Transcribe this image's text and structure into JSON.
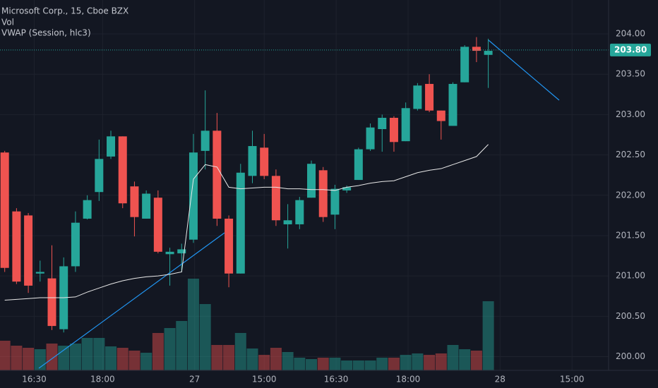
{
  "chart_data": {
    "type": "candlestick",
    "title": "Microsoft Corp., 15, Cboe BZX",
    "indicator_labels": [
      "Vol",
      "VWAP (Session, hlc3)"
    ],
    "categories": [
      null,
      null,
      null,
      null,
      null,
      null,
      null,
      null,
      null,
      null,
      null,
      null,
      null,
      null,
      null,
      null,
      null,
      null,
      null,
      null,
      null,
      null,
      null,
      null,
      null,
      null,
      null,
      null,
      null,
      null,
      null,
      null,
      null,
      null,
      null,
      null,
      null,
      null,
      null,
      null,
      null,
      null
    ],
    "open": [
      202.53,
      201.8,
      201.75,
      201.03,
      200.97,
      200.34,
      201.12,
      201.71,
      202.04,
      202.48,
      202.73,
      202.11,
      201.71,
      201.97,
      201.27,
      201.28,
      201.45,
      202.55,
      202.8,
      201.71,
      201.03,
      202.24,
      202.59,
      202.24,
      201.64,
      201.64,
      201.97,
      202.31,
      201.76,
      202.06,
      202.19,
      202.57,
      202.82,
      202.96,
      202.67,
      203.07,
      203.38,
      203.05,
      202.86,
      203.4,
      203.84,
      203.74
    ],
    "high": [
      202.55,
      201.84,
      201.78,
      201.19,
      201.38,
      201.23,
      201.8,
      202.0,
      202.69,
      202.8,
      202.73,
      202.17,
      202.06,
      202.06,
      201.35,
      201.4,
      202.76,
      203.3,
      203.02,
      201.75,
      202.39,
      202.8,
      202.76,
      202.32,
      201.89,
      201.98,
      202.43,
      202.35,
      202.13,
      202.12,
      202.59,
      202.89,
      203.0,
      202.98,
      203.15,
      203.39,
      203.5,
      203.05,
      203.4,
      203.86,
      203.96,
      203.94
    ],
    "low": [
      201.05,
      200.9,
      200.79,
      200.93,
      200.33,
      200.3,
      201.05,
      201.7,
      201.93,
      202.45,
      201.84,
      201.49,
      201.71,
      201.28,
      200.88,
      201.05,
      201.41,
      202.32,
      201.62,
      200.86,
      201.03,
      202.15,
      202.2,
      201.62,
      201.34,
      201.58,
      201.97,
      201.67,
      201.58,
      202.03,
      202.19,
      202.55,
      202.54,
      202.54,
      202.67,
      203.05,
      203.03,
      202.69,
      202.86,
      203.4,
      203.65,
      203.33
    ],
    "close": [
      201.1,
      200.93,
      200.88,
      201.05,
      200.38,
      201.12,
      201.66,
      201.94,
      202.45,
      202.73,
      201.9,
      201.73,
      202.02,
      201.3,
      201.3,
      201.33,
      202.53,
      202.8,
      201.71,
      201.03,
      202.28,
      202.61,
      202.24,
      201.69,
      201.69,
      201.94,
      202.39,
      201.73,
      202.08,
      202.1,
      202.57,
      202.84,
      202.96,
      202.66,
      203.08,
      203.36,
      203.05,
      202.92,
      203.38,
      203.84,
      203.79,
      203.79
    ],
    "volume": [
      42,
      35,
      32,
      30,
      38,
      35,
      38,
      46,
      46,
      34,
      32,
      28,
      25,
      53,
      60,
      70,
      130,
      94,
      36,
      36,
      53,
      31,
      22,
      32,
      26,
      18,
      16,
      18,
      18,
      14,
      14,
      14,
      18,
      18,
      22,
      24,
      22,
      24,
      36,
      30,
      28,
      98
    ],
    "vwap": [
      200.7,
      200.71,
      200.72,
      200.73,
      200.73,
      200.73,
      200.74,
      200.8,
      200.85,
      200.9,
      200.94,
      200.97,
      200.99,
      201.0,
      201.02,
      201.05,
      202.2,
      202.38,
      202.35,
      202.1,
      202.08,
      202.09,
      202.1,
      202.1,
      202.08,
      202.08,
      202.07,
      202.07,
      202.06,
      202.1,
      202.12,
      202.15,
      202.17,
      202.18,
      202.23,
      202.28,
      202.31,
      202.33,
      202.38,
      202.43,
      202.48,
      202.63
    ],
    "up_color": "#26a69a",
    "down_color": "#ef5350",
    "vwap_color": "#e8e8e8",
    "last_price": {
      "value": 203.8,
      "label": "203.80"
    },
    "xlim": [
      -0.4,
      51.2
    ],
    "xticks": [
      {
        "value": 2.5,
        "label": "16:30"
      },
      {
        "value": 8.3,
        "label": "18:00"
      },
      {
        "value": 16.1,
        "label": "27"
      },
      {
        "value": 22.0,
        "label": "15:00"
      },
      {
        "value": 28.1,
        "label": "16:30"
      },
      {
        "value": 34.2,
        "label": "18:00"
      },
      {
        "value": 42.0,
        "label": "28"
      },
      {
        "value": 48.1,
        "label": "15:00"
      }
    ],
    "ylim": [
      199.83,
      204.42
    ],
    "yticks": [
      {
        "value": 200,
        "label": "200.00"
      },
      {
        "value": 200.5,
        "label": "200.50"
      },
      {
        "value": 201,
        "label": "201.00"
      },
      {
        "value": 201.5,
        "label": "201.50"
      },
      {
        "value": 202,
        "label": "202.00"
      },
      {
        "value": 202.5,
        "label": "202.50"
      },
      {
        "value": 203,
        "label": "203.00"
      },
      {
        "value": 203.5,
        "label": "203.50"
      },
      {
        "value": 204,
        "label": "204.00"
      }
    ],
    "grid": true
  }
}
